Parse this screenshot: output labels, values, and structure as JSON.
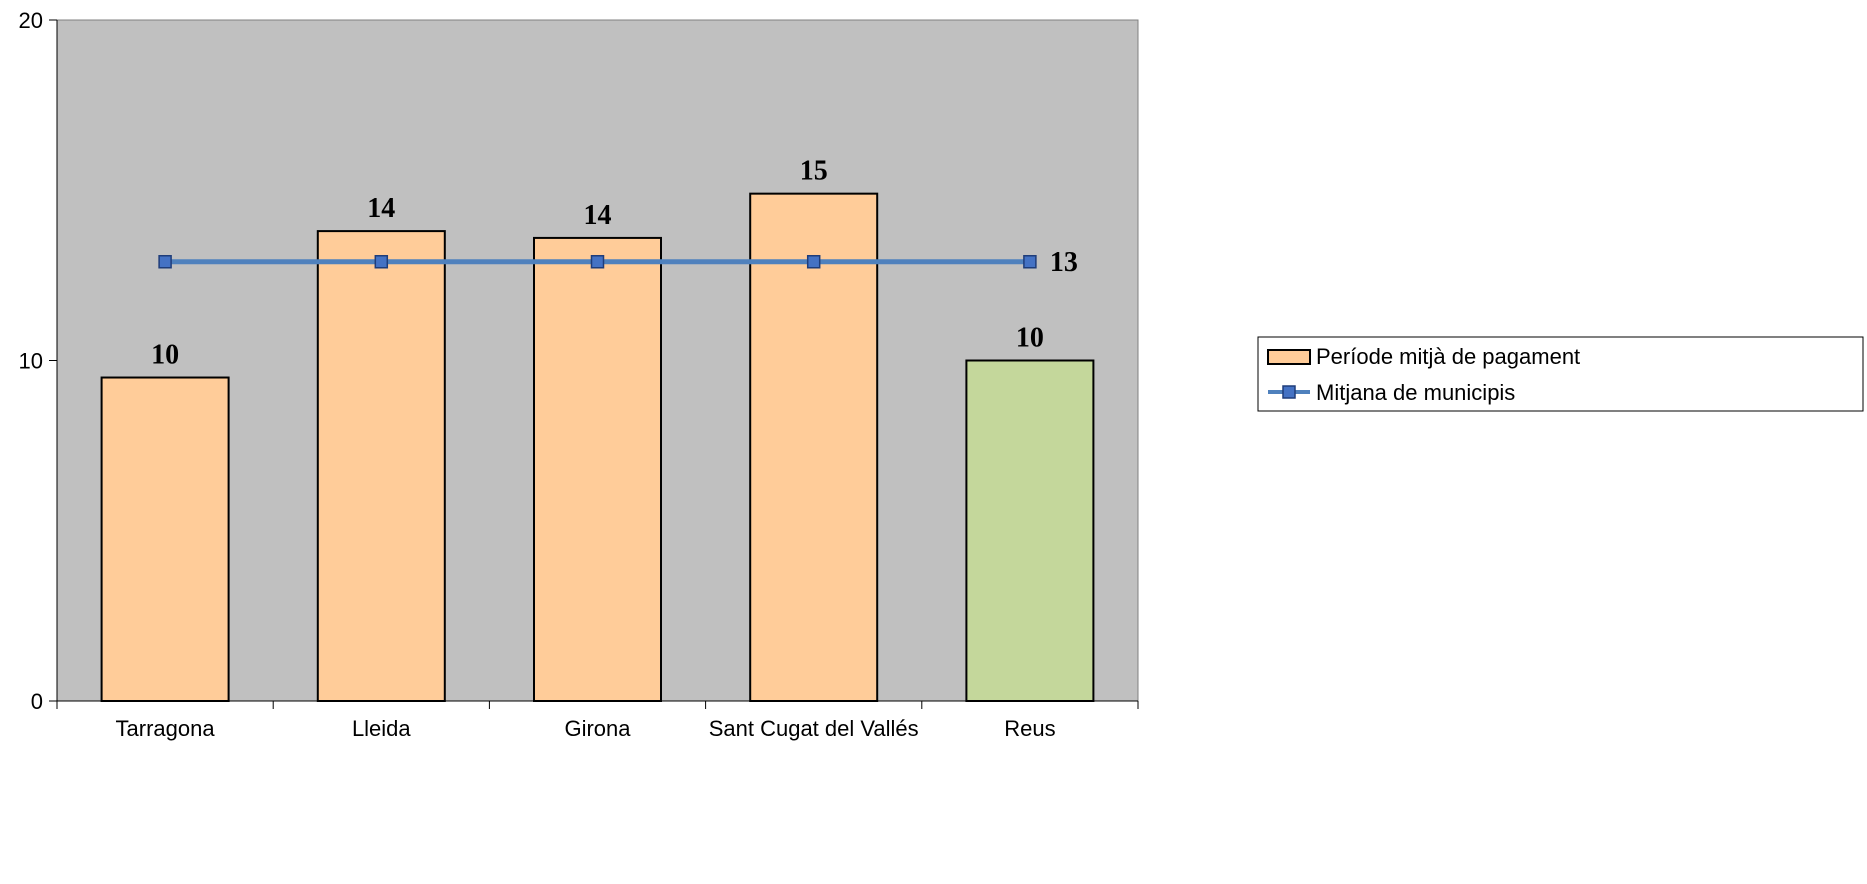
{
  "chart_data": {
    "type": "bar",
    "categories": [
      "Tarragona",
      "Lleida",
      "Girona",
      "Sant Cugat del Vallés",
      "Reus"
    ],
    "series": [
      {
        "name": "Període mitjà de pagament",
        "kind": "bar",
        "values": [
          9.5,
          13.8,
          13.6,
          14.9,
          10
        ],
        "data_labels": [
          "10",
          "14",
          "14",
          "15",
          "10"
        ],
        "colors": [
          "#FFCC99",
          "#FFCC99",
          "#FFCC99",
          "#FFCC99",
          "#C4D79B"
        ]
      },
      {
        "name": "Mitjana de municipis",
        "kind": "line",
        "values": [
          12.9,
          12.9,
          12.9,
          12.9,
          12.9
        ],
        "end_label": "13",
        "color": "#4F81BD"
      }
    ],
    "ylim": [
      0,
      20
    ],
    "yticks": [
      "0",
      "10",
      "20"
    ],
    "xlabel": "",
    "ylabel": "",
    "title": "",
    "plot_background": "#C0C0C0",
    "grid": false,
    "legend_position": "right"
  }
}
